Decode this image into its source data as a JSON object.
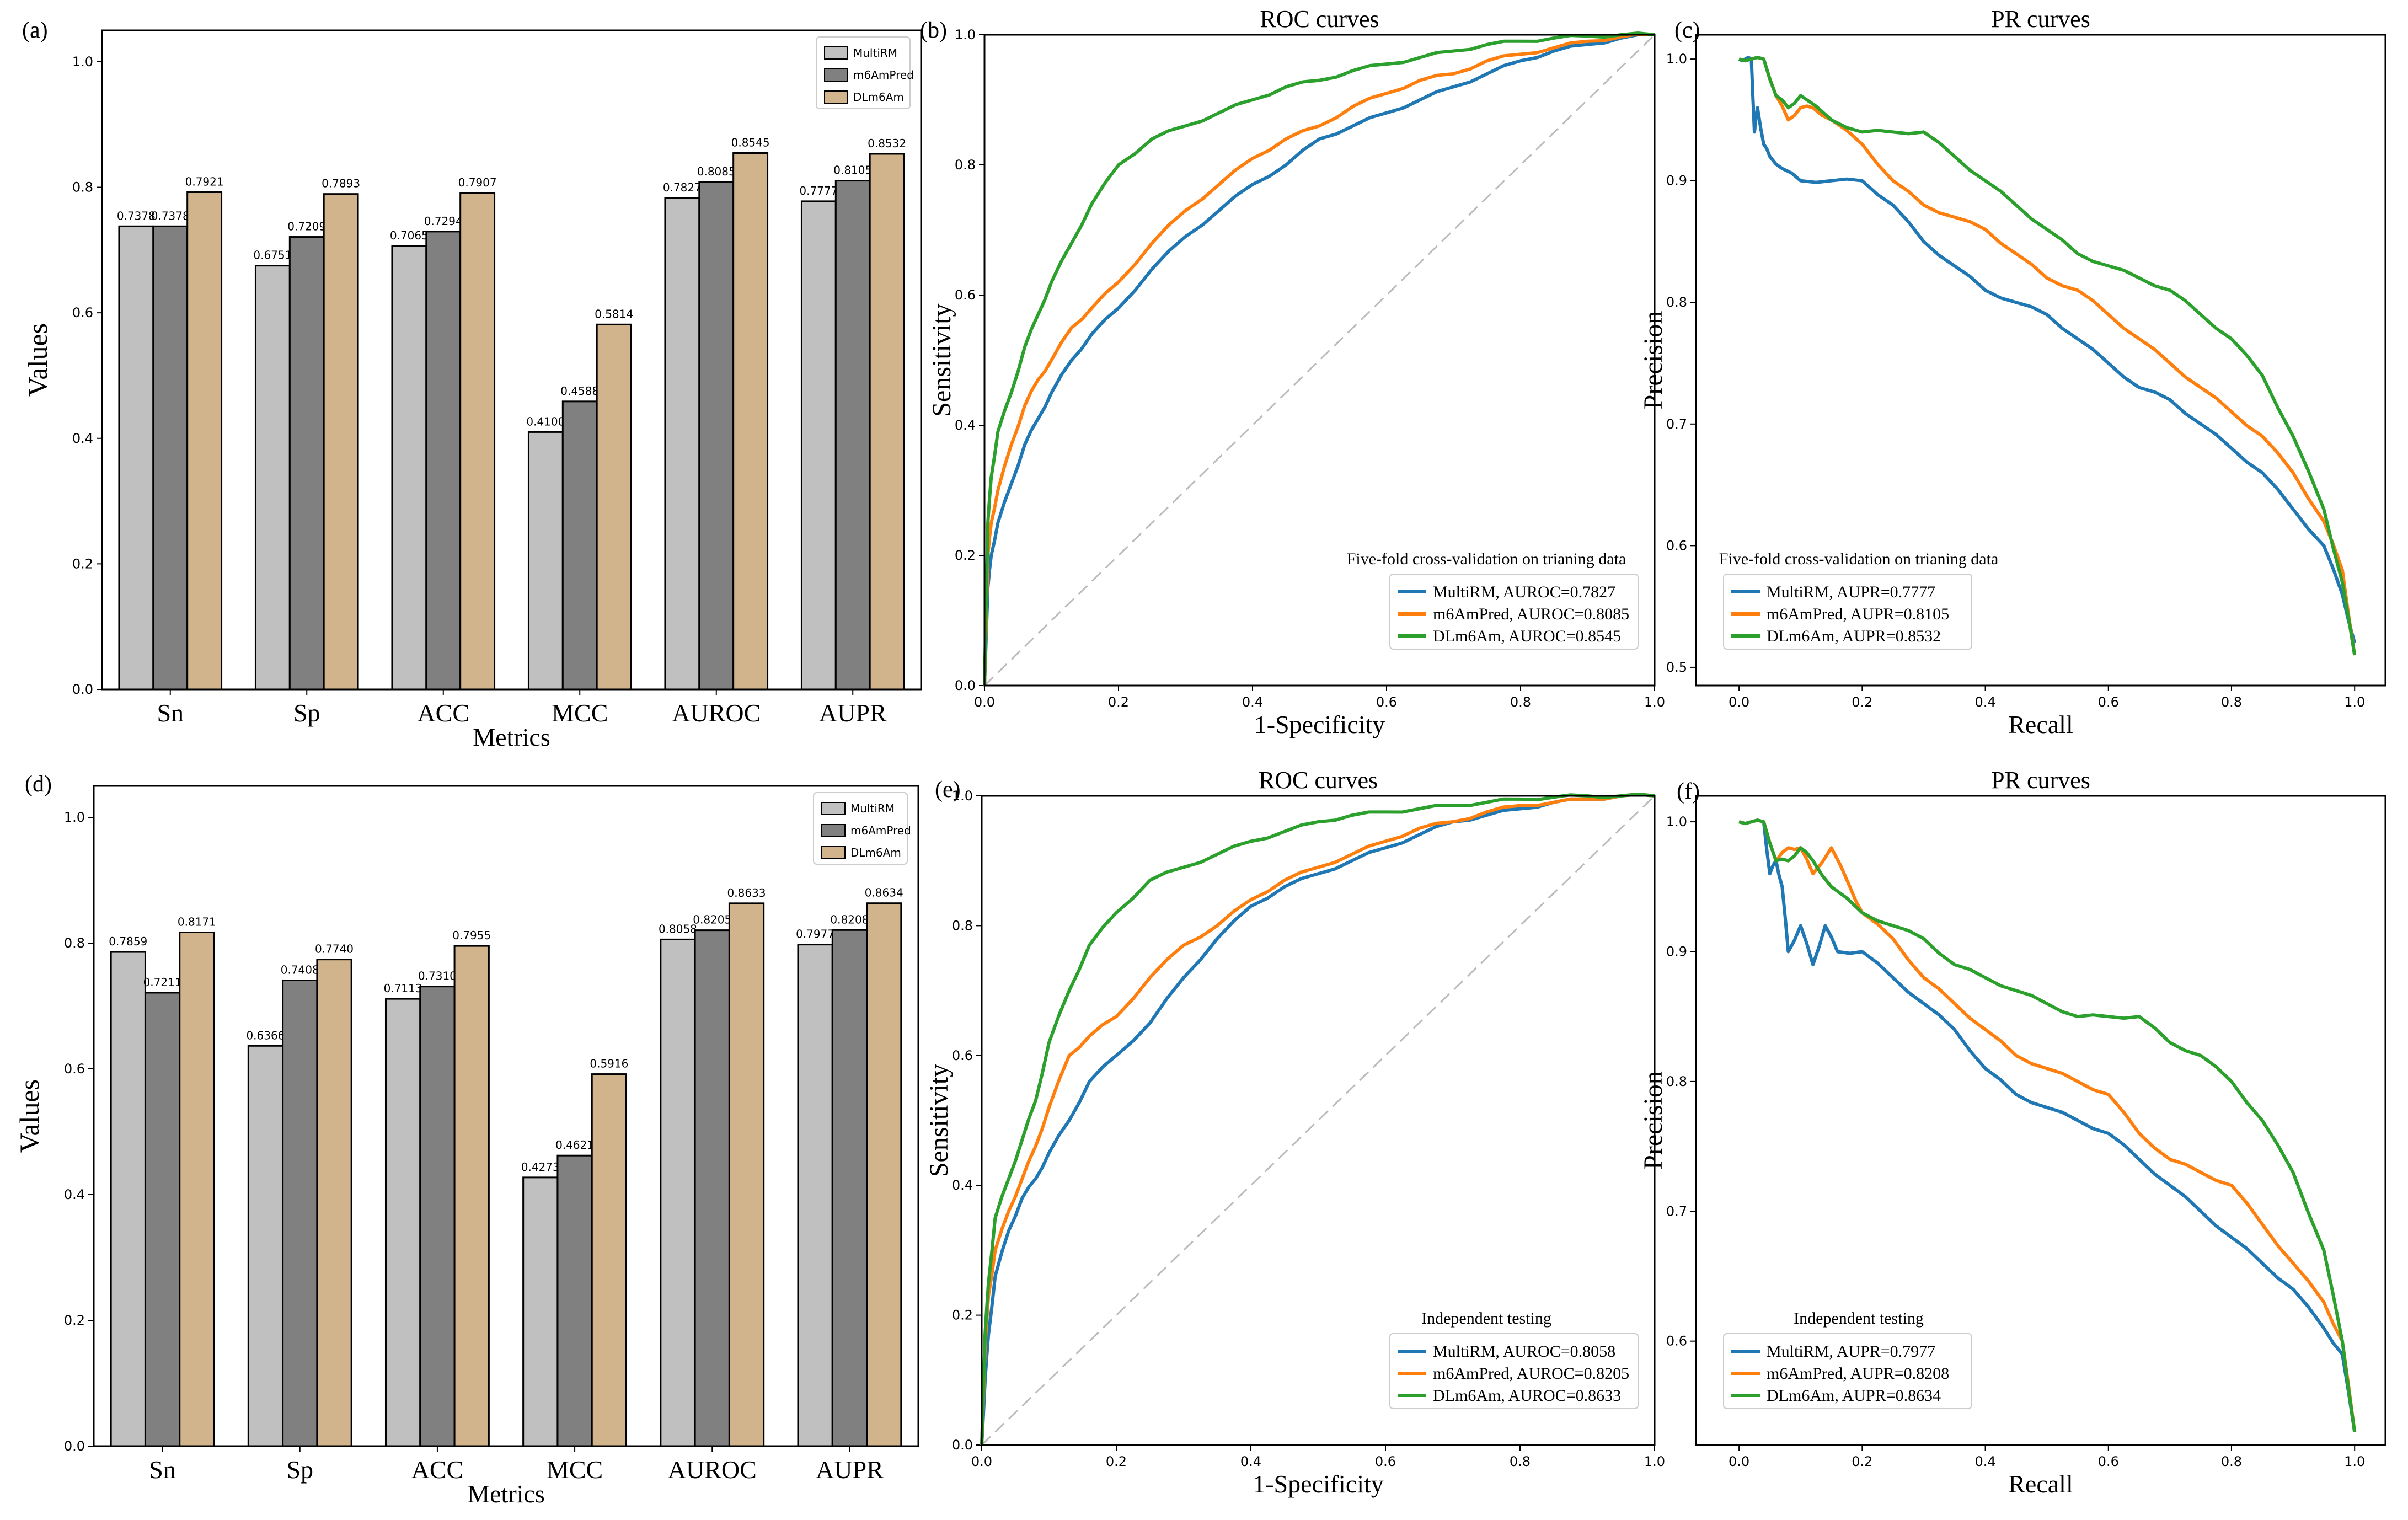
{
  "chart_data": [
    {
      "id": "a",
      "type": "bar",
      "panel_label": "(a)",
      "title": "",
      "xlabel": "Metrics",
      "ylabel": "Values",
      "ylim": [
        0,
        1.05
      ],
      "yticks": [
        "0.0",
        "0.2",
        "0.4",
        "0.6",
        "0.8",
        "1.0"
      ],
      "categories": [
        "Sn",
        "Sp",
        "ACC",
        "MCC",
        "AUROC",
        "AUPR"
      ],
      "legend_position": "top-right",
      "series": [
        {
          "name": "MultiRM",
          "color": "#c0c0c0",
          "values": [
            0.7378,
            0.6751,
            0.7065,
            0.41,
            0.7827,
            0.7777
          ],
          "labels": [
            "0.7378",
            "0.6751",
            "0.7065",
            "0.4100",
            "0.7827",
            "0.7777"
          ]
        },
        {
          "name": "m6AmPred",
          "color": "#808080",
          "values": [
            0.7378,
            0.7209,
            0.7294,
            0.4588,
            0.8085,
            0.8105
          ],
          "labels": [
            "0.7378",
            "0.7209",
            "0.7294",
            "0.4588",
            "0.8085",
            "0.8105"
          ]
        },
        {
          "name": "DLm6Am",
          "color": "#d2b48c",
          "values": [
            0.7921,
            0.7893,
            0.7907,
            0.5814,
            0.8545,
            0.8532
          ],
          "labels": [
            "0.7921",
            "0.7893",
            "0.7907",
            "0.5814",
            "0.8545",
            "0.8532"
          ]
        }
      ]
    },
    {
      "id": "b",
      "type": "line",
      "panel_label": "(b)",
      "title": "ROC curves",
      "xlabel": "1-Specificity",
      "ylabel": "Sensitivity",
      "xlim": [
        0,
        1
      ],
      "ylim": [
        0,
        1
      ],
      "xticks": [
        "0.0",
        "0.2",
        "0.4",
        "0.6",
        "0.8",
        "1.0"
      ],
      "yticks": [
        "0.0",
        "0.2",
        "0.4",
        "0.6",
        "0.8",
        "1.0"
      ],
      "legend_title": "Five-fold cross-validation on trianing data",
      "legend_position": "lower-right",
      "diagonal": true,
      "series": [
        {
          "name": "MultiRM, AUROC=0.7827",
          "color": "#1f77b4",
          "x": [
            0,
            0.005,
            0.01,
            0.02,
            0.04,
            0.06,
            0.08,
            0.1,
            0.13,
            0.16,
            0.2,
            0.25,
            0.3,
            0.35,
            0.4,
            0.45,
            0.5,
            0.55,
            0.6,
            0.65,
            0.7,
            0.75,
            0.8,
            0.85,
            0.9,
            0.95,
            1.0
          ],
          "y": [
            0,
            0.15,
            0.2,
            0.25,
            0.31,
            0.37,
            0.41,
            0.45,
            0.5,
            0.54,
            0.58,
            0.64,
            0.69,
            0.73,
            0.77,
            0.8,
            0.84,
            0.86,
            0.88,
            0.9,
            0.92,
            0.94,
            0.96,
            0.975,
            0.985,
            0.995,
            1.0
          ]
        },
        {
          "name": "m6AmPred, AUROC=0.8085",
          "color": "#ff7f0e",
          "x": [
            0,
            0.005,
            0.01,
            0.02,
            0.04,
            0.06,
            0.08,
            0.1,
            0.13,
            0.16,
            0.2,
            0.25,
            0.3,
            0.35,
            0.4,
            0.45,
            0.5,
            0.55,
            0.6,
            0.65,
            0.7,
            0.75,
            0.8,
            0.85,
            0.9,
            0.95,
            1.0
          ],
          "y": [
            0,
            0.2,
            0.25,
            0.3,
            0.37,
            0.43,
            0.47,
            0.5,
            0.55,
            0.58,
            0.62,
            0.68,
            0.73,
            0.77,
            0.81,
            0.84,
            0.86,
            0.89,
            0.91,
            0.93,
            0.94,
            0.96,
            0.97,
            0.98,
            0.99,
            0.997,
            1.0
          ]
        },
        {
          "name": "DLm6Am, AUROC=0.8545",
          "color": "#2ca02c",
          "x": [
            0,
            0.005,
            0.01,
            0.02,
            0.04,
            0.06,
            0.08,
            0.1,
            0.13,
            0.16,
            0.2,
            0.25,
            0.3,
            0.35,
            0.4,
            0.45,
            0.5,
            0.55,
            0.6,
            0.65,
            0.7,
            0.75,
            0.8,
            0.85,
            0.9,
            0.95,
            1.0
          ],
          "y": [
            0,
            0.25,
            0.32,
            0.39,
            0.45,
            0.52,
            0.57,
            0.62,
            0.68,
            0.74,
            0.8,
            0.84,
            0.86,
            0.88,
            0.9,
            0.92,
            0.93,
            0.945,
            0.955,
            0.965,
            0.975,
            0.985,
            0.99,
            0.995,
            0.998,
            1.0,
            1.0
          ]
        }
      ]
    },
    {
      "id": "c",
      "type": "line",
      "panel_label": "(c)",
      "title": "PR curves",
      "xlabel": "Recall",
      "ylabel": "Precision",
      "xlim": [
        -0.07,
        1.05
      ],
      "ylim": [
        0.485,
        1.02
      ],
      "xticks": [
        "0.0",
        "0.2",
        "0.4",
        "0.6",
        "0.8",
        "1.0"
      ],
      "yticks": [
        "0.5",
        "0.6",
        "0.7",
        "0.8",
        "0.9",
        "1.0"
      ],
      "legend_title": "Five-fold cross-validation on trianing data",
      "legend_position": "lower-left",
      "diagonal": false,
      "series": [
        {
          "name": "MultiRM, AUPR=0.7777",
          "color": "#1f77b4",
          "x": [
            0,
            0.01,
            0.02,
            0.025,
            0.03,
            0.04,
            0.05,
            0.07,
            0.1,
            0.15,
            0.2,
            0.25,
            0.3,
            0.35,
            0.4,
            0.45,
            0.5,
            0.55,
            0.6,
            0.65,
            0.7,
            0.75,
            0.8,
            0.85,
            0.9,
            0.95,
            0.98,
            1.0
          ],
          "y": [
            1.0,
            1.0,
            1.0,
            0.94,
            0.96,
            0.93,
            0.92,
            0.91,
            0.9,
            0.9,
            0.9,
            0.88,
            0.85,
            0.83,
            0.81,
            0.8,
            0.79,
            0.77,
            0.75,
            0.73,
            0.72,
            0.7,
            0.68,
            0.66,
            0.63,
            0.6,
            0.56,
            0.52
          ]
        },
        {
          "name": "m6AmPred, AUPR=0.8105",
          "color": "#ff7f0e",
          "x": [
            0,
            0.02,
            0.04,
            0.06,
            0.08,
            0.1,
            0.12,
            0.15,
            0.2,
            0.25,
            0.3,
            0.35,
            0.4,
            0.45,
            0.5,
            0.55,
            0.6,
            0.65,
            0.7,
            0.75,
            0.8,
            0.85,
            0.9,
            0.95,
            0.98,
            1.0
          ],
          "y": [
            1.0,
            1.0,
            1.0,
            0.97,
            0.95,
            0.96,
            0.96,
            0.95,
            0.93,
            0.9,
            0.88,
            0.87,
            0.86,
            0.84,
            0.82,
            0.81,
            0.79,
            0.77,
            0.75,
            0.73,
            0.71,
            0.69,
            0.66,
            0.62,
            0.58,
            0.51
          ]
        },
        {
          "name": "DLm6Am, AUPR=0.8532",
          "color": "#2ca02c",
          "x": [
            0,
            0.02,
            0.04,
            0.06,
            0.08,
            0.1,
            0.15,
            0.2,
            0.25,
            0.3,
            0.35,
            0.4,
            0.45,
            0.5,
            0.55,
            0.6,
            0.65,
            0.7,
            0.75,
            0.8,
            0.85,
            0.9,
            0.95,
            0.98,
            1.0
          ],
          "y": [
            1.0,
            1.0,
            1.0,
            0.97,
            0.96,
            0.97,
            0.95,
            0.94,
            0.94,
            0.94,
            0.92,
            0.9,
            0.88,
            0.86,
            0.84,
            0.83,
            0.82,
            0.81,
            0.79,
            0.77,
            0.74,
            0.69,
            0.63,
            0.57,
            0.51
          ]
        }
      ]
    },
    {
      "id": "d",
      "type": "bar",
      "panel_label": "(d)",
      "title": "",
      "xlabel": "Metrics",
      "ylabel": "Values",
      "ylim": [
        0,
        1.05
      ],
      "yticks": [
        "0.0",
        "0.2",
        "0.4",
        "0.6",
        "0.8",
        "1.0"
      ],
      "categories": [
        "Sn",
        "Sp",
        "ACC",
        "MCC",
        "AUROC",
        "AUPR"
      ],
      "legend_position": "top-right",
      "series": [
        {
          "name": "MultiRM",
          "color": "#c0c0c0",
          "values": [
            0.7859,
            0.6366,
            0.7113,
            0.4273,
            0.8058,
            0.7977
          ],
          "labels": [
            "0.7859",
            "0.6366",
            "0.7113",
            "0.4273",
            "0.8058",
            "0.7977"
          ]
        },
        {
          "name": "m6AmPred",
          "color": "#808080",
          "values": [
            0.7211,
            0.7408,
            0.731,
            0.4621,
            0.8205,
            0.8208
          ],
          "labels": [
            "0.7211",
            "0.7408",
            "0.7310",
            "0.4621",
            "0.8205",
            "0.8208"
          ]
        },
        {
          "name": "DLm6Am",
          "color": "#d2b48c",
          "values": [
            0.8171,
            0.774,
            0.7955,
            0.5916,
            0.8633,
            0.8634
          ],
          "labels": [
            "0.8171",
            "0.7740",
            "0.7955",
            "0.5916",
            "0.8633",
            "0.8634"
          ]
        }
      ]
    },
    {
      "id": "e",
      "type": "line",
      "panel_label": "(e)",
      "title": "ROC curves",
      "xlabel": "1-Specificity",
      "ylabel": "Sensitivity",
      "xlim": [
        0,
        1
      ],
      "ylim": [
        0,
        1
      ],
      "xticks": [
        "0.0",
        "0.2",
        "0.4",
        "0.6",
        "0.8",
        "1.0"
      ],
      "yticks": [
        "0.0",
        "0.2",
        "0.4",
        "0.6",
        "0.8",
        "1.0"
      ],
      "legend_title": "Independent testing",
      "legend_position": "lower-right",
      "diagonal": true,
      "series": [
        {
          "name": "MultiRM, AUROC=0.8058",
          "color": "#1f77b4",
          "x": [
            0,
            0.005,
            0.01,
            0.02,
            0.04,
            0.06,
            0.08,
            0.1,
            0.13,
            0.16,
            0.2,
            0.25,
            0.3,
            0.35,
            0.4,
            0.45,
            0.5,
            0.55,
            0.6,
            0.65,
            0.7,
            0.75,
            0.8,
            0.85,
            0.9,
            0.95,
            1.0
          ],
          "y": [
            0,
            0.1,
            0.17,
            0.26,
            0.33,
            0.38,
            0.41,
            0.45,
            0.5,
            0.56,
            0.6,
            0.65,
            0.72,
            0.78,
            0.83,
            0.86,
            0.88,
            0.9,
            0.92,
            0.94,
            0.96,
            0.97,
            0.98,
            0.99,
            0.995,
            1.0,
            1.0
          ]
        },
        {
          "name": "m6AmPred, AUROC=0.8205",
          "color": "#ff7f0e",
          "x": [
            0,
            0.005,
            0.01,
            0.02,
            0.04,
            0.06,
            0.08,
            0.1,
            0.13,
            0.16,
            0.2,
            0.25,
            0.3,
            0.35,
            0.4,
            0.45,
            0.5,
            0.55,
            0.6,
            0.65,
            0.7,
            0.75,
            0.8,
            0.85,
            0.9,
            0.95,
            1.0
          ],
          "y": [
            0,
            0.15,
            0.23,
            0.3,
            0.36,
            0.41,
            0.46,
            0.52,
            0.6,
            0.63,
            0.66,
            0.72,
            0.77,
            0.8,
            0.84,
            0.87,
            0.89,
            0.91,
            0.93,
            0.95,
            0.96,
            0.975,
            0.985,
            0.99,
            0.995,
            1.0,
            1.0
          ]
        },
        {
          "name": "DLm6Am, AUROC=0.8633",
          "color": "#2ca02c",
          "x": [
            0,
            0.005,
            0.01,
            0.02,
            0.04,
            0.06,
            0.08,
            0.1,
            0.13,
            0.16,
            0.2,
            0.25,
            0.3,
            0.35,
            0.4,
            0.45,
            0.5,
            0.55,
            0.6,
            0.65,
            0.7,
            0.75,
            0.8,
            0.85,
            0.9,
            0.95,
            1.0
          ],
          "y": [
            0,
            0.17,
            0.25,
            0.35,
            0.41,
            0.47,
            0.53,
            0.62,
            0.7,
            0.77,
            0.82,
            0.87,
            0.89,
            0.91,
            0.93,
            0.945,
            0.96,
            0.97,
            0.975,
            0.98,
            0.985,
            0.99,
            0.995,
            0.998,
            1.0,
            1.0,
            1.0
          ]
        }
      ]
    },
    {
      "id": "f",
      "type": "line",
      "panel_label": "(f)",
      "title": "PR curves",
      "xlabel": "Recall",
      "ylabel": "Precision",
      "xlim": [
        -0.07,
        1.05
      ],
      "ylim": [
        0.52,
        1.02
      ],
      "xticks": [
        "0.0",
        "0.2",
        "0.4",
        "0.6",
        "0.8",
        "1.0"
      ],
      "yticks": [
        "0.6",
        "0.7",
        "0.8",
        "0.9",
        "1.0"
      ],
      "legend_title": "Independent testing",
      "legend_position": "lower-left",
      "diagonal": false,
      "series": [
        {
          "name": "MultiRM, AUPR=0.7977",
          "color": "#1f77b4",
          "x": [
            0,
            0.02,
            0.04,
            0.05,
            0.06,
            0.07,
            0.08,
            0.1,
            0.12,
            0.14,
            0.16,
            0.2,
            0.25,
            0.3,
            0.35,
            0.4,
            0.45,
            0.5,
            0.55,
            0.6,
            0.65,
            0.7,
            0.75,
            0.8,
            0.85,
            0.9,
            0.95,
            0.98,
            1.0
          ],
          "y": [
            1.0,
            1.0,
            1.0,
            0.96,
            0.97,
            0.95,
            0.9,
            0.92,
            0.89,
            0.92,
            0.9,
            0.9,
            0.88,
            0.86,
            0.84,
            0.81,
            0.79,
            0.78,
            0.77,
            0.76,
            0.74,
            0.72,
            0.7,
            0.68,
            0.66,
            0.64,
            0.61,
            0.59,
            0.53
          ]
        },
        {
          "name": "m6AmPred, AUPR=0.8208",
          "color": "#ff7f0e",
          "x": [
            0,
            0.02,
            0.04,
            0.06,
            0.08,
            0.1,
            0.12,
            0.15,
            0.18,
            0.2,
            0.25,
            0.3,
            0.35,
            0.4,
            0.45,
            0.5,
            0.55,
            0.6,
            0.65,
            0.7,
            0.75,
            0.8,
            0.85,
            0.9,
            0.95,
            0.98,
            1.0
          ],
          "y": [
            1.0,
            1.0,
            1.0,
            0.97,
            0.98,
            0.98,
            0.96,
            0.98,
            0.95,
            0.93,
            0.91,
            0.88,
            0.86,
            0.84,
            0.82,
            0.81,
            0.8,
            0.79,
            0.76,
            0.74,
            0.73,
            0.72,
            0.69,
            0.66,
            0.63,
            0.6,
            0.53
          ]
        },
        {
          "name": "DLm6Am, AUPR=0.8634",
          "color": "#2ca02c",
          "x": [
            0,
            0.02,
            0.04,
            0.06,
            0.08,
            0.1,
            0.12,
            0.15,
            0.2,
            0.25,
            0.3,
            0.35,
            0.4,
            0.45,
            0.5,
            0.55,
            0.6,
            0.65,
            0.7,
            0.75,
            0.8,
            0.85,
            0.9,
            0.95,
            0.98,
            1.0
          ],
          "y": [
            1.0,
            1.0,
            1.0,
            0.97,
            0.97,
            0.98,
            0.97,
            0.95,
            0.93,
            0.92,
            0.91,
            0.89,
            0.88,
            0.87,
            0.86,
            0.85,
            0.85,
            0.85,
            0.83,
            0.82,
            0.8,
            0.77,
            0.73,
            0.67,
            0.6,
            0.53
          ]
        }
      ]
    }
  ]
}
